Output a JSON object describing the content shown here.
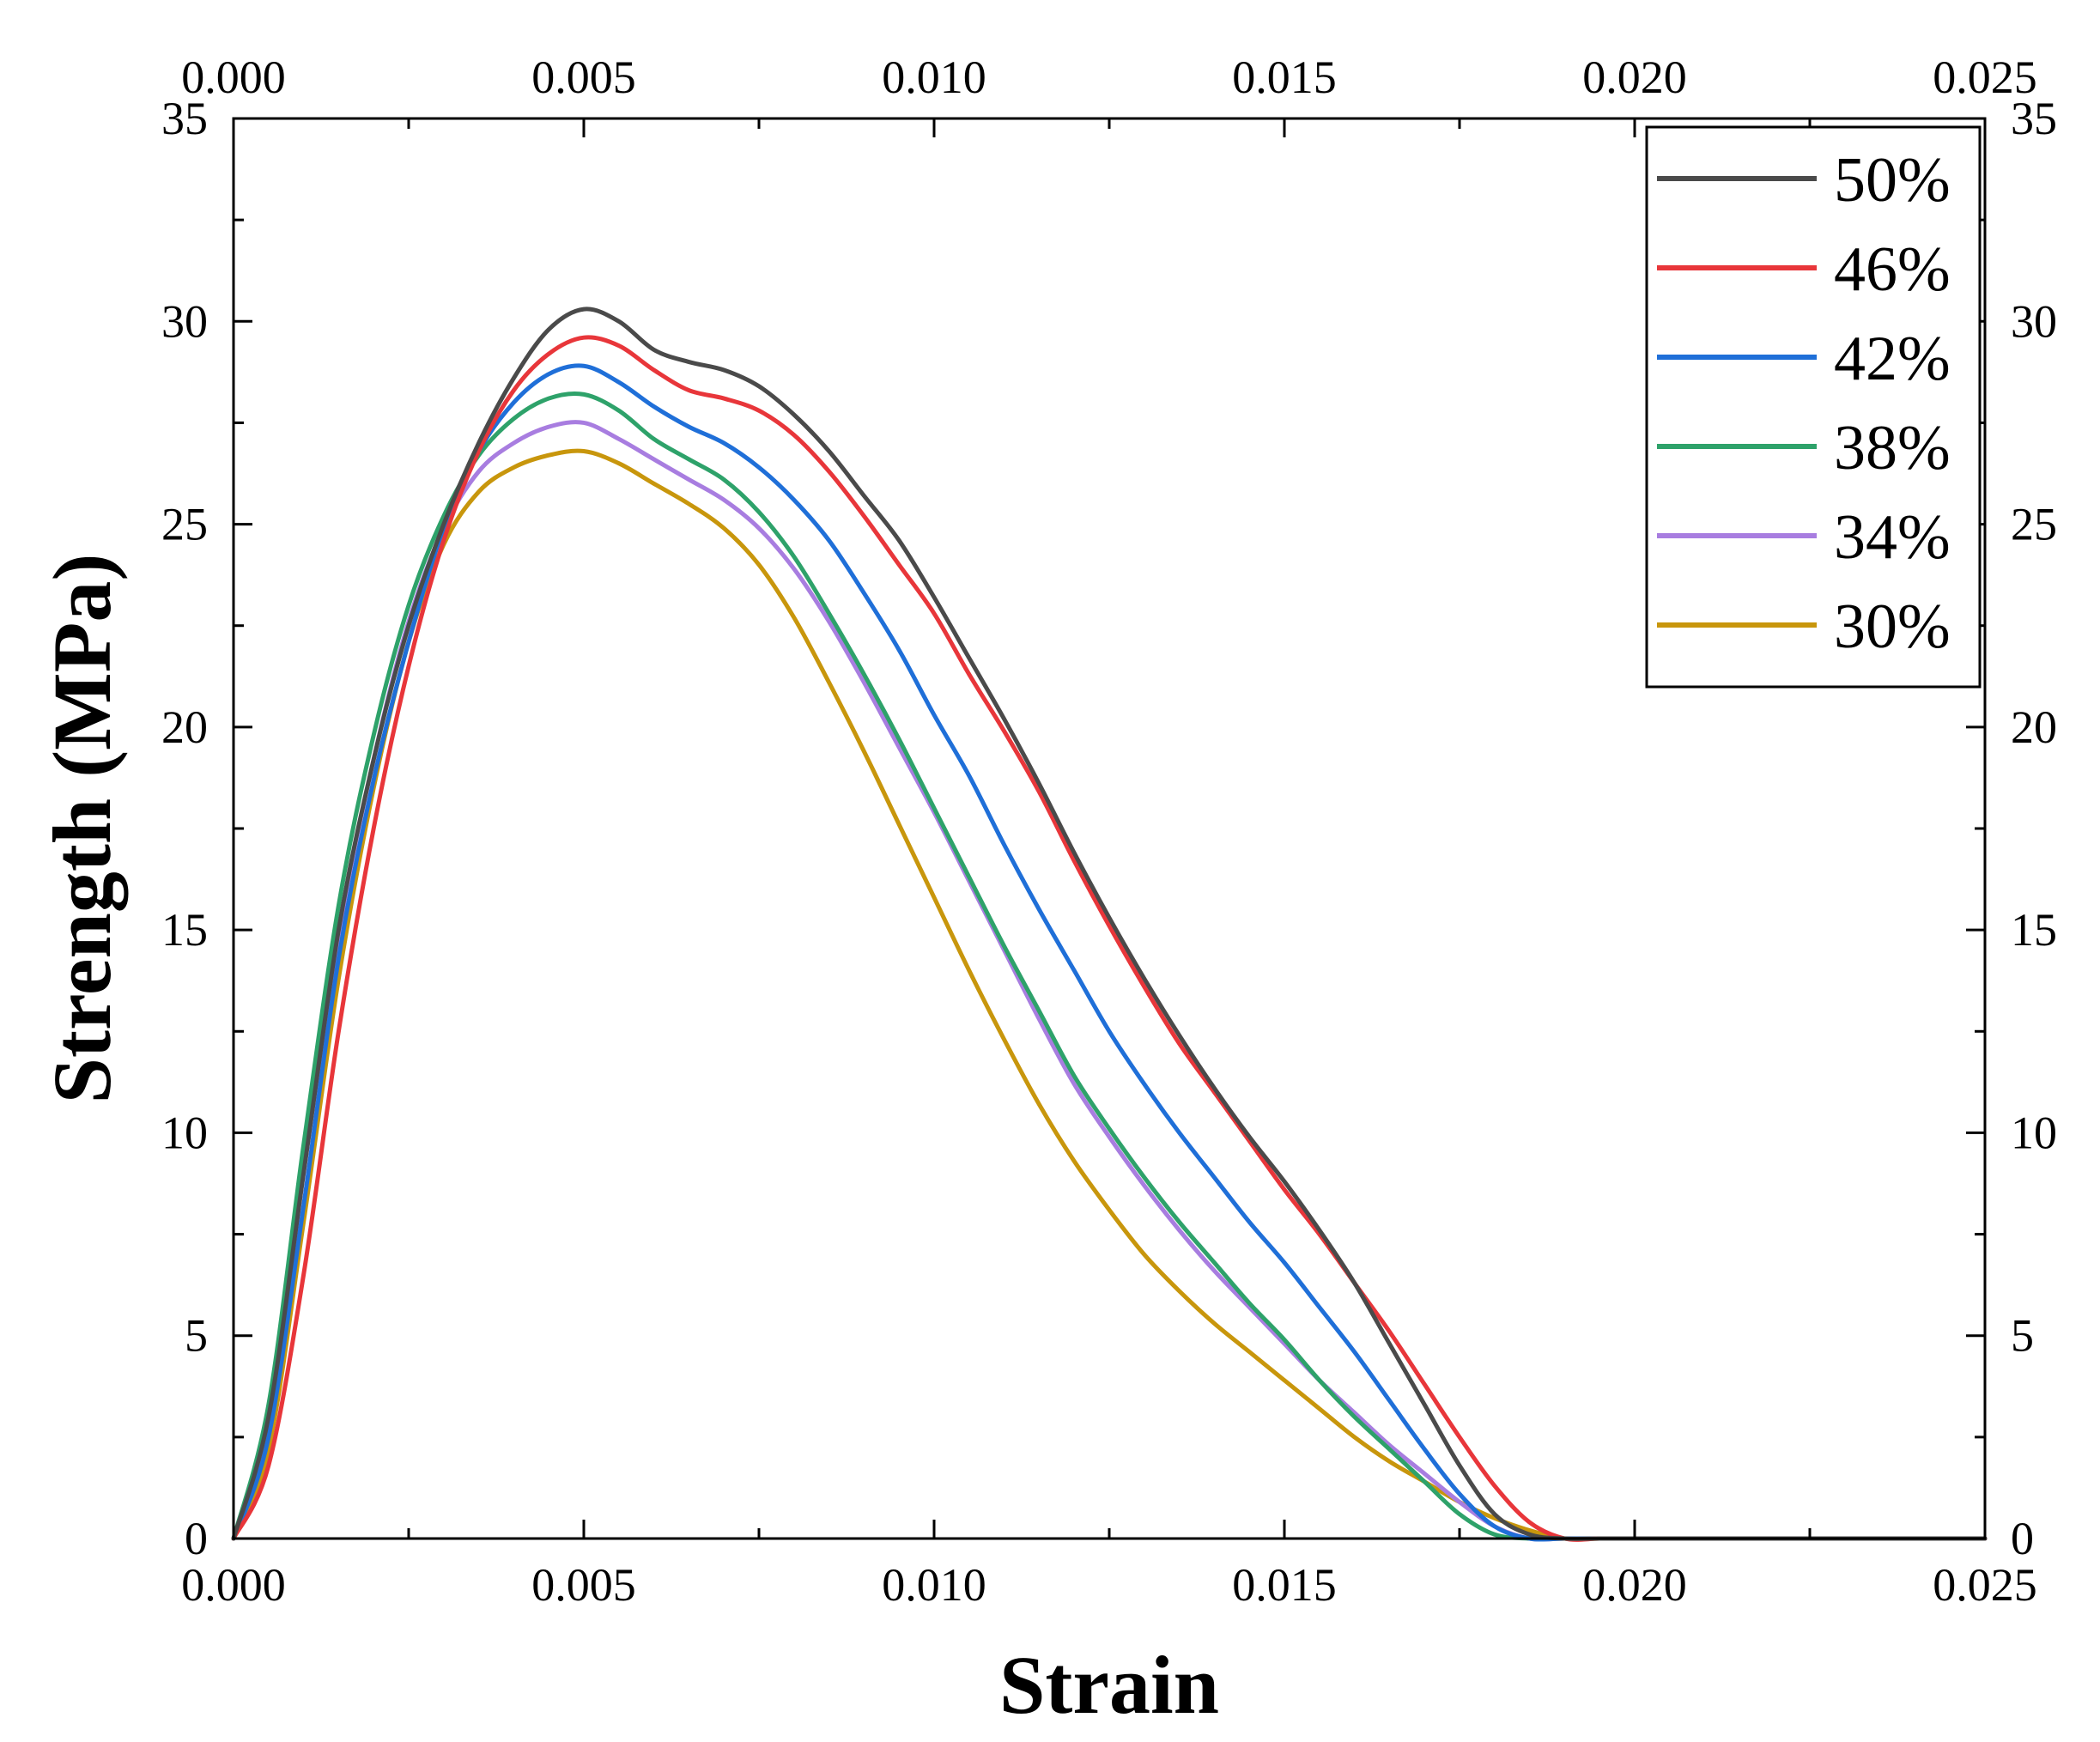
{
  "chart_data": {
    "type": "line",
    "title": "",
    "xlabel": "Strain",
    "ylabel": "Strength (MPa)",
    "xlim": [
      0,
      0.025
    ],
    "ylim": [
      0,
      35
    ],
    "x_ticks": [
      "0.000",
      "0.005",
      "0.010",
      "0.015",
      "0.020",
      "0.025"
    ],
    "y_ticks": [
      "0",
      "5",
      "10",
      "15",
      "20",
      "25",
      "30",
      "35"
    ],
    "grid": false,
    "legend_position": "top-right",
    "series": [
      {
        "name": "50%",
        "color": "#4a4a4a",
        "x": [
          0,
          0.0005,
          0.001,
          0.0015,
          0.002,
          0.0025,
          0.003,
          0.0035,
          0.004,
          0.0045,
          0.005,
          0.0055,
          0.006,
          0.0065,
          0.007,
          0.0075,
          0.008,
          0.0085,
          0.009,
          0.0095,
          0.01,
          0.0105,
          0.011,
          0.0115,
          0.012,
          0.0125,
          0.013,
          0.0135,
          0.014,
          0.0145,
          0.015,
          0.0155,
          0.016,
          0.0165,
          0.017,
          0.0175,
          0.018,
          0.0185,
          0.019,
          0.0195,
          0.02,
          0.025
        ],
        "y": [
          0,
          3.0,
          9.0,
          15.0,
          19.2,
          22.5,
          25.0,
          27.0,
          28.6,
          29.8,
          30.3,
          30.0,
          29.3,
          29.0,
          28.8,
          28.4,
          27.7,
          26.8,
          25.7,
          24.6,
          23.2,
          21.7,
          20.2,
          18.6,
          16.9,
          15.3,
          13.8,
          12.4,
          11.1,
          9.9,
          8.8,
          7.6,
          6.3,
          4.8,
          3.3,
          1.8,
          0.6,
          0.1,
          0,
          0,
          0,
          0
        ]
      },
      {
        "name": "46%",
        "color": "#e8363a",
        "x": [
          0,
          0.0005,
          0.001,
          0.0015,
          0.002,
          0.0025,
          0.003,
          0.0035,
          0.004,
          0.0045,
          0.005,
          0.0055,
          0.006,
          0.0065,
          0.007,
          0.0075,
          0.008,
          0.0085,
          0.009,
          0.0095,
          0.01,
          0.0105,
          0.011,
          0.0115,
          0.012,
          0.0125,
          0.013,
          0.0135,
          0.014,
          0.0145,
          0.015,
          0.0155,
          0.016,
          0.0165,
          0.017,
          0.0175,
          0.018,
          0.0185,
          0.019,
          0.0195,
          0.02,
          0.025
        ],
        "y": [
          0,
          1.8,
          6.5,
          12.5,
          17.5,
          21.5,
          24.6,
          26.8,
          28.3,
          29.2,
          29.6,
          29.4,
          28.8,
          28.3,
          28.1,
          27.8,
          27.2,
          26.3,
          25.2,
          24.0,
          22.8,
          21.3,
          19.9,
          18.4,
          16.7,
          15.1,
          13.6,
          12.2,
          11.0,
          9.8,
          8.6,
          7.5,
          6.3,
          5.1,
          3.8,
          2.5,
          1.3,
          0.4,
          0,
          0,
          0,
          0
        ]
      },
      {
        "name": "42%",
        "color": "#1f6fd8",
        "x": [
          0,
          0.0005,
          0.001,
          0.0015,
          0.002,
          0.0025,
          0.003,
          0.0035,
          0.004,
          0.0045,
          0.005,
          0.0055,
          0.006,
          0.0065,
          0.007,
          0.0075,
          0.008,
          0.0085,
          0.009,
          0.0095,
          0.01,
          0.0105,
          0.011,
          0.0115,
          0.012,
          0.0125,
          0.013,
          0.0135,
          0.014,
          0.0145,
          0.015,
          0.0155,
          0.016,
          0.0165,
          0.017,
          0.0175,
          0.018,
          0.0185,
          0.019,
          0.0195,
          0.02,
          0.025
        ],
        "y": [
          0,
          2.5,
          8.2,
          14.3,
          18.7,
          22.1,
          24.9,
          26.8,
          28.0,
          28.7,
          28.9,
          28.5,
          27.9,
          27.4,
          27.0,
          26.4,
          25.6,
          24.6,
          23.3,
          21.9,
          20.3,
          18.8,
          17.1,
          15.5,
          14.0,
          12.5,
          11.2,
          10.0,
          8.9,
          7.8,
          6.8,
          5.7,
          4.6,
          3.4,
          2.2,
          1.1,
          0.3,
          0,
          0,
          0,
          0,
          0
        ]
      },
      {
        "name": "38%",
        "color": "#2ea26a",
        "x": [
          0,
          0.0005,
          0.001,
          0.0015,
          0.002,
          0.0025,
          0.003,
          0.0035,
          0.004,
          0.0045,
          0.005,
          0.0055,
          0.006,
          0.0065,
          0.007,
          0.0075,
          0.008,
          0.0085,
          0.009,
          0.0095,
          0.01,
          0.0105,
          0.011,
          0.0115,
          0.012,
          0.0125,
          0.013,
          0.0135,
          0.014,
          0.0145,
          0.015,
          0.0155,
          0.016,
          0.0165,
          0.017,
          0.0175,
          0.018,
          0.0185,
          0.019,
          0.0195,
          0.02,
          0.025
        ],
        "y": [
          0,
          3.3,
          9.7,
          15.6,
          19.8,
          23.0,
          25.2,
          26.7,
          27.6,
          28.1,
          28.2,
          27.8,
          27.1,
          26.6,
          26.1,
          25.3,
          24.2,
          22.8,
          21.3,
          19.7,
          18.0,
          16.3,
          14.6,
          13.0,
          11.4,
          10.1,
          8.9,
          7.8,
          6.8,
          5.8,
          4.9,
          3.9,
          3.0,
          2.2,
          1.4,
          0.6,
          0.1,
          0,
          0,
          0,
          0,
          0
        ]
      },
      {
        "name": "34%",
        "color": "#a87de0",
        "x": [
          0,
          0.0005,
          0.001,
          0.0015,
          0.002,
          0.0025,
          0.003,
          0.0035,
          0.004,
          0.0045,
          0.005,
          0.0055,
          0.006,
          0.0065,
          0.007,
          0.0075,
          0.008,
          0.0085,
          0.009,
          0.0095,
          0.01,
          0.0105,
          0.011,
          0.0115,
          0.012,
          0.0125,
          0.013,
          0.0135,
          0.014,
          0.0145,
          0.015,
          0.0155,
          0.016,
          0.0165,
          0.017,
          0.0175,
          0.018,
          0.0185,
          0.019,
          0.0195,
          0.02,
          0.025
        ],
        "y": [
          0,
          2.8,
          9.0,
          14.9,
          19.2,
          22.6,
          24.9,
          26.3,
          27.0,
          27.4,
          27.5,
          27.1,
          26.6,
          26.1,
          25.6,
          24.9,
          23.9,
          22.6,
          21.1,
          19.5,
          17.9,
          16.2,
          14.5,
          12.8,
          11.2,
          9.9,
          8.7,
          7.6,
          6.6,
          5.7,
          4.8,
          3.9,
          3.1,
          2.3,
          1.6,
          0.9,
          0.3,
          0,
          0,
          0,
          0,
          0
        ]
      },
      {
        "name": "30%",
        "color": "#c8960c",
        "x": [
          0,
          0.0005,
          0.001,
          0.0015,
          0.002,
          0.0025,
          0.003,
          0.0035,
          0.004,
          0.0045,
          0.005,
          0.0055,
          0.006,
          0.0065,
          0.007,
          0.0075,
          0.008,
          0.0085,
          0.009,
          0.0095,
          0.01,
          0.0105,
          0.011,
          0.0115,
          0.012,
          0.0125,
          0.013,
          0.0135,
          0.014,
          0.0145,
          0.015,
          0.0155,
          0.016,
          0.0165,
          0.017,
          0.0175,
          0.018,
          0.0185,
          0.019,
          0.0195,
          0.02,
          0.025
        ],
        "y": [
          0,
          2.2,
          7.8,
          13.8,
          18.5,
          22.1,
          24.5,
          25.8,
          26.4,
          26.7,
          26.8,
          26.5,
          26.0,
          25.5,
          24.9,
          24.0,
          22.7,
          21.1,
          19.4,
          17.6,
          15.8,
          14.0,
          12.3,
          10.7,
          9.3,
          8.1,
          7.0,
          6.1,
          5.3,
          4.6,
          3.9,
          3.2,
          2.5,
          1.9,
          1.4,
          0.9,
          0.5,
          0.2,
          0,
          0,
          0,
          0
        ]
      }
    ]
  }
}
